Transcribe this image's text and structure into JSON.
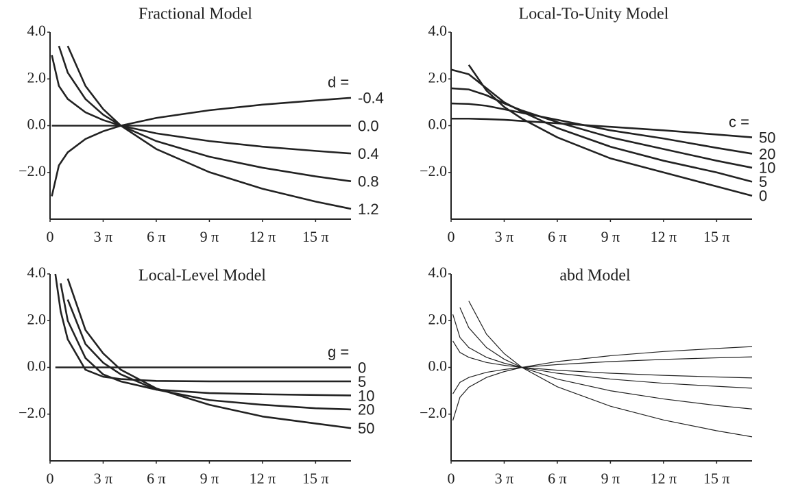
{
  "chart_data": [
    {
      "type": "line",
      "title": "Fractional Model",
      "legend_title": "d =",
      "color": "#222222",
      "x": [
        0.1,
        0.5,
        1,
        2,
        3,
        4,
        6,
        9,
        12,
        15,
        17
      ],
      "series": [
        {
          "name": "-0.4",
          "values": [
            -3.02,
            -1.7,
            -1.14,
            -0.57,
            -0.24,
            0,
            0.33,
            0.66,
            0.9,
            1.08,
            1.19
          ]
        },
        {
          "name": "0.0",
          "values": [
            0,
            0,
            0,
            0,
            0,
            0,
            0,
            0,
            0,
            0,
            0
          ]
        },
        {
          "name": "0.4",
          "values": [
            3.02,
            1.7,
            1.14,
            0.57,
            0.24,
            0,
            -0.33,
            -0.66,
            -0.9,
            -1.08,
            -1.19
          ]
        },
        {
          "name": "0.8",
          "values": [
            null,
            3.41,
            2.27,
            1.14,
            0.47,
            0,
            -0.66,
            -1.33,
            -1.8,
            -2.17,
            -2.38
          ]
        },
        {
          "name": "1.2",
          "values": [
            null,
            null,
            3.41,
            1.7,
            0.71,
            0,
            -1.0,
            -1.99,
            -2.7,
            -3.25,
            -3.56
          ]
        }
      ],
      "xlim": [
        0,
        17
      ],
      "ylim": [
        -4,
        4
      ],
      "xticks": [
        0,
        {
          "value": 3,
          "label": "3 π"
        },
        {
          "value": 6,
          "label": "6 π"
        },
        {
          "value": 9,
          "label": "9 π"
        },
        {
          "value": 12,
          "label": "12 π"
        },
        {
          "value": 15,
          "label": "15 π"
        }
      ],
      "yticks": [
        {
          "value": 4,
          "label": "4.0"
        },
        {
          "value": 2,
          "label": "2.0"
        },
        {
          "value": 0,
          "label": "0.0"
        },
        {
          "value": -2,
          "label": "−2.0"
        }
      ]
    },
    {
      "type": "line",
      "title": "Local-To-Unity Model",
      "legend_title": "c =",
      "color": "#222222",
      "x": [
        0,
        1,
        2,
        3,
        4,
        6,
        9,
        12,
        15,
        17
      ],
      "series": [
        {
          "name": "50",
          "values": [
            0.3,
            0.3,
            0.28,
            0.25,
            0.2,
            0.1,
            -0.05,
            -0.2,
            -0.38,
            -0.5
          ]
        },
        {
          "name": "20",
          "values": [
            0.95,
            0.93,
            0.85,
            0.7,
            0.55,
            0.25,
            -0.2,
            -0.55,
            -0.95,
            -1.2
          ]
        },
        {
          "name": "10",
          "values": [
            1.6,
            1.55,
            1.3,
            0.95,
            0.65,
            0.15,
            -0.5,
            -1.0,
            -1.5,
            -1.8
          ]
        },
        {
          "name": "5",
          "values": [
            2.4,
            2.2,
            1.6,
            1.0,
            0.6,
            -0.1,
            -0.9,
            -1.5,
            -2.0,
            -2.4
          ]
        },
        {
          "name": "0",
          "values": [
            null,
            2.6,
            1.5,
            0.8,
            0.3,
            -0.5,
            -1.4,
            -2.0,
            -2.6,
            -3.0
          ]
        }
      ],
      "xlim": [
        0,
        17
      ],
      "ylim": [
        -4,
        4
      ],
      "xticks": [
        0,
        {
          "value": 3,
          "label": "3 π"
        },
        {
          "value": 6,
          "label": "6 π"
        },
        {
          "value": 9,
          "label": "9 π"
        },
        {
          "value": 12,
          "label": "12 π"
        },
        {
          "value": 15,
          "label": "15 π"
        }
      ],
      "yticks": [
        {
          "value": 4,
          "label": "4.0"
        },
        {
          "value": 2,
          "label": "2.0"
        },
        {
          "value": 0,
          "label": "0.0"
        },
        {
          "value": -2,
          "label": "−2.0"
        }
      ]
    },
    {
      "type": "line",
      "title": "Local-Level Model",
      "legend_title": "g =",
      "color": "#222222",
      "x": [
        0.3,
        0.6,
        1,
        2,
        3,
        4,
        6,
        9,
        12,
        15,
        17
      ],
      "series": [
        {
          "name": "0",
          "values": [
            0,
            0,
            0,
            0,
            0,
            0,
            0,
            0,
            0,
            0,
            0
          ]
        },
        {
          "name": "5",
          "values": [
            4.0,
            2.4,
            1.2,
            -0.1,
            -0.4,
            -0.5,
            -0.58,
            -0.6,
            -0.6,
            -0.6,
            -0.6
          ]
        },
        {
          "name": "10",
          "values": [
            null,
            3.6,
            2.0,
            0.4,
            -0.3,
            -0.6,
            -0.95,
            -1.1,
            -1.15,
            -1.18,
            -1.2
          ]
        },
        {
          "name": "20",
          "values": [
            null,
            null,
            2.9,
            1.0,
            0.2,
            -0.3,
            -0.95,
            -1.4,
            -1.6,
            -1.75,
            -1.8
          ]
        },
        {
          "name": "50",
          "values": [
            null,
            null,
            3.8,
            1.6,
            0.6,
            -0.1,
            -0.9,
            -1.6,
            -2.1,
            -2.4,
            -2.6
          ]
        }
      ],
      "xlim": [
        0,
        17
      ],
      "ylim": [
        -4,
        4
      ],
      "xticks": [
        0,
        {
          "value": 3,
          "label": "3 π"
        },
        {
          "value": 6,
          "label": "6 π"
        },
        {
          "value": 9,
          "label": "9 π"
        },
        {
          "value": 12,
          "label": "12 π"
        },
        {
          "value": 15,
          "label": "15 π"
        }
      ],
      "yticks": [
        {
          "value": 4,
          "label": "4.0"
        },
        {
          "value": 2,
          "label": "2.0"
        },
        {
          "value": 0,
          "label": "0.0"
        },
        {
          "value": -2,
          "label": "−2.0"
        }
      ]
    },
    {
      "type": "line",
      "title": "abd Model",
      "color": "#222222",
      "x": [
        0.1,
        0.5,
        1,
        2,
        3,
        4,
        6,
        9,
        12,
        15,
        17
      ],
      "series": [
        {
          "values": [
            -2.27,
            -1.28,
            -0.85,
            -0.43,
            -0.18,
            0,
            0.25,
            0.5,
            0.68,
            0.81,
            0.89
          ]
        },
        {
          "values": [
            -1.13,
            -0.64,
            -0.43,
            -0.21,
            -0.09,
            0,
            0.12,
            0.25,
            0.34,
            0.41,
            0.45
          ]
        },
        {
          "values": [
            1.13,
            0.64,
            0.43,
            0.21,
            0.09,
            0,
            -0.12,
            -0.25,
            -0.34,
            -0.41,
            -0.45
          ]
        },
        {
          "values": [
            2.27,
            1.28,
            0.85,
            0.43,
            0.18,
            0,
            -0.25,
            -0.5,
            -0.68,
            -0.81,
            -0.89
          ]
        },
        {
          "values": [
            null,
            2.56,
            1.7,
            0.85,
            0.35,
            0,
            -0.5,
            -1.0,
            -1.35,
            -1.63,
            -1.78
          ]
        },
        {
          "values": [
            null,
            null,
            2.84,
            1.42,
            0.59,
            0,
            -0.83,
            -1.66,
            -2.25,
            -2.71,
            -2.97
          ]
        }
      ],
      "xlim": [
        0,
        17
      ],
      "ylim": [
        -4,
        4
      ],
      "xticks": [
        0,
        {
          "value": 3,
          "label": "3 π"
        },
        {
          "value": 6,
          "label": "6 π"
        },
        {
          "value": 9,
          "label": "9 π"
        },
        {
          "value": 12,
          "label": "12 π"
        },
        {
          "value": 15,
          "label": "15 π"
        }
      ],
      "yticks": [
        {
          "value": 4,
          "label": "4.0"
        },
        {
          "value": 2,
          "label": "2.0"
        },
        {
          "value": 0,
          "label": "0.0"
        },
        {
          "value": -2,
          "label": "−2.0"
        }
      ]
    }
  ]
}
